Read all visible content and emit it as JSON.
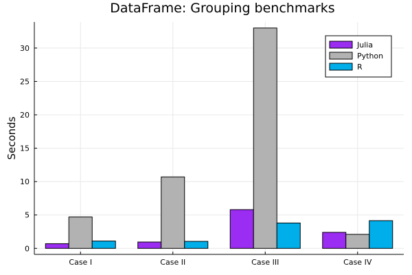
{
  "chart_data": {
    "type": "bar",
    "title": "DataFrame: Grouping benchmarks",
    "xlabel": "",
    "ylabel": "Seconds",
    "categories": [
      "Case I",
      "Case II",
      "Case III",
      "Case IV"
    ],
    "yticks": [
      0,
      5,
      10,
      15,
      20,
      25,
      30
    ],
    "ylim": [
      -0.9,
      33.9
    ],
    "grid": true,
    "legend_position": "top-right",
    "series": [
      {
        "name": "Julia",
        "color": "#9b2cf1",
        "values": [
          0.7,
          0.95,
          5.8,
          2.4
        ]
      },
      {
        "name": "Python",
        "color": "#b2b2b2",
        "values": [
          4.7,
          10.7,
          33.0,
          2.1
        ]
      },
      {
        "name": "R",
        "color": "#00aeea",
        "values": [
          1.1,
          1.05,
          3.8,
          4.15
        ]
      }
    ]
  }
}
